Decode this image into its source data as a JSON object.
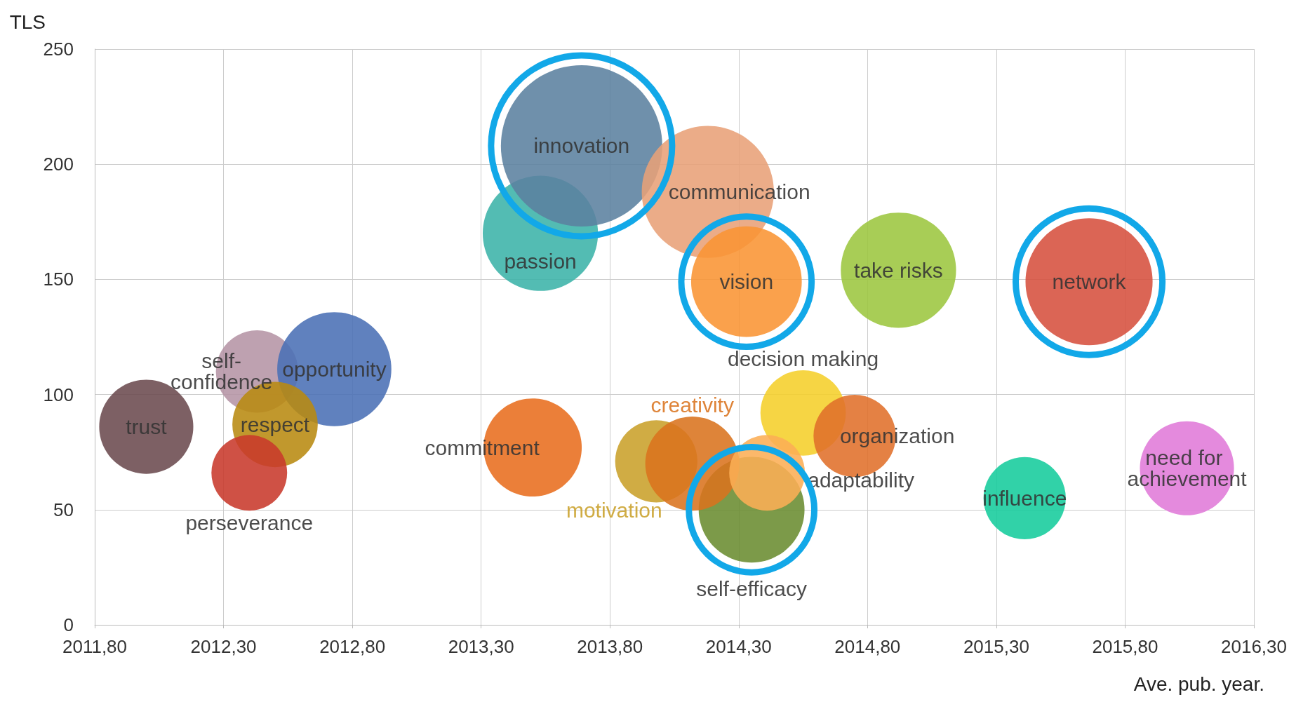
{
  "chart_data": {
    "type": "bubble",
    "xlabel": "Ave. pub. year.",
    "ylabel": "TLS",
    "xlim": [
      2011.8,
      2016.3
    ],
    "xticks": [
      {
        "value": 2011.8,
        "label": "2011,80"
      },
      {
        "value": 2012.3,
        "label": "2012,30"
      },
      {
        "value": 2012.8,
        "label": "2012,80"
      },
      {
        "value": 2013.3,
        "label": "2013,30"
      },
      {
        "value": 2013.8,
        "label": "2013,80"
      },
      {
        "value": 2014.3,
        "label": "2014,30"
      },
      {
        "value": 2014.8,
        "label": "2014,80"
      },
      {
        "value": 2015.3,
        "label": "2015,30"
      },
      {
        "value": 2015.8,
        "label": "2015,80"
      },
      {
        "value": 2016.3,
        "label": "2016,30"
      }
    ],
    "ylim": [
      0,
      250
    ],
    "yticks": [
      0,
      50,
      100,
      150,
      200,
      250
    ],
    "grid": true,
    "legend": false,
    "series": [
      {
        "name": "trust",
        "color": "#6b4a4f",
        "x": [
          2012.0
        ],
        "values": [
          86
        ],
        "sizes": [
          0.34
        ]
      },
      {
        "name": "self-confidence",
        "color": "#b594a5",
        "x": [
          2012.43
        ],
        "values": [
          110
        ],
        "sizes": [
          0.26
        ]
      },
      {
        "name": "opportunity",
        "color": "#4a6fb5",
        "x": [
          2012.73
        ],
        "values": [
          111
        ],
        "sizes": [
          0.5
        ]
      },
      {
        "name": "respect",
        "color": "#b88a10",
        "x": [
          2012.5
        ],
        "values": [
          87
        ],
        "sizes": [
          0.28
        ]
      },
      {
        "name": "perseverance",
        "color": "#c8392b",
        "x": [
          2012.4
        ],
        "values": [
          66
        ],
        "sizes": [
          0.22
        ]
      },
      {
        "name": "passion",
        "color": "#3bb3a8",
        "x": [
          2013.53
        ],
        "values": [
          170
        ],
        "sizes": [
          0.51
        ]
      },
      {
        "name": "innovation",
        "color": "#5b819f",
        "x": [
          2013.69
        ],
        "values": [
          208
        ],
        "sizes": [
          1
        ]
      },
      {
        "name": "communication",
        "color": "#e8a078",
        "x": [
          2014.18
        ],
        "values": [
          188
        ],
        "sizes": [
          0.67
        ]
      },
      {
        "name": "vision",
        "color": "#f99433",
        "x": [
          2014.33
        ],
        "values": [
          149
        ],
        "sizes": [
          0.47
        ]
      },
      {
        "name": "take risks",
        "color": "#9cc63f",
        "x": [
          2014.92
        ],
        "values": [
          154
        ],
        "sizes": [
          0.51
        ]
      },
      {
        "name": "network",
        "color": "#d6503d",
        "x": [
          2015.66
        ],
        "values": [
          149
        ],
        "sizes": [
          0.62
        ]
      },
      {
        "name": "commitment",
        "color": "#e86d1e",
        "x": [
          2013.5
        ],
        "values": [
          77
        ],
        "sizes": [
          0.37
        ]
      },
      {
        "name": "decision making",
        "color": "#f5cf2a",
        "x": [
          2014.55
        ],
        "values": [
          92
        ],
        "sizes": [
          0.28
        ]
      },
      {
        "name": "organization",
        "color": "#e0702a",
        "x": [
          2014.75
        ],
        "values": [
          82
        ],
        "sizes": [
          0.26
        ]
      },
      {
        "name": "self-efficacy",
        "color": "#6a8c30",
        "x": [
          2014.35
        ],
        "values": [
          50
        ],
        "sizes": [
          0.43
        ]
      },
      {
        "name": "influence",
        "color": "#14cc9c",
        "x": [
          2015.41
        ],
        "values": [
          55
        ],
        "sizes": [
          0.26
        ]
      },
      {
        "name": "need for achievement",
        "color": "#e07ad8",
        "x": [
          2016.04
        ],
        "values": [
          68
        ],
        "sizes": [
          0.34
        ]
      },
      {
        "name": "motivation",
        "color": "#c9a02a",
        "x": [
          2013.98
        ],
        "values": [
          71
        ],
        "sizes": [
          0.26
        ]
      },
      {
        "name": "creativity",
        "color": "#d9731e",
        "x": [
          2014.12
        ],
        "values": [
          70
        ],
        "sizes": [
          0.34
        ]
      },
      {
        "name": "adaptability",
        "color": "#fcae55",
        "x": [
          2014.41
        ],
        "values": [
          66
        ],
        "sizes": [
          0.22
        ]
      }
    ]
  }
}
